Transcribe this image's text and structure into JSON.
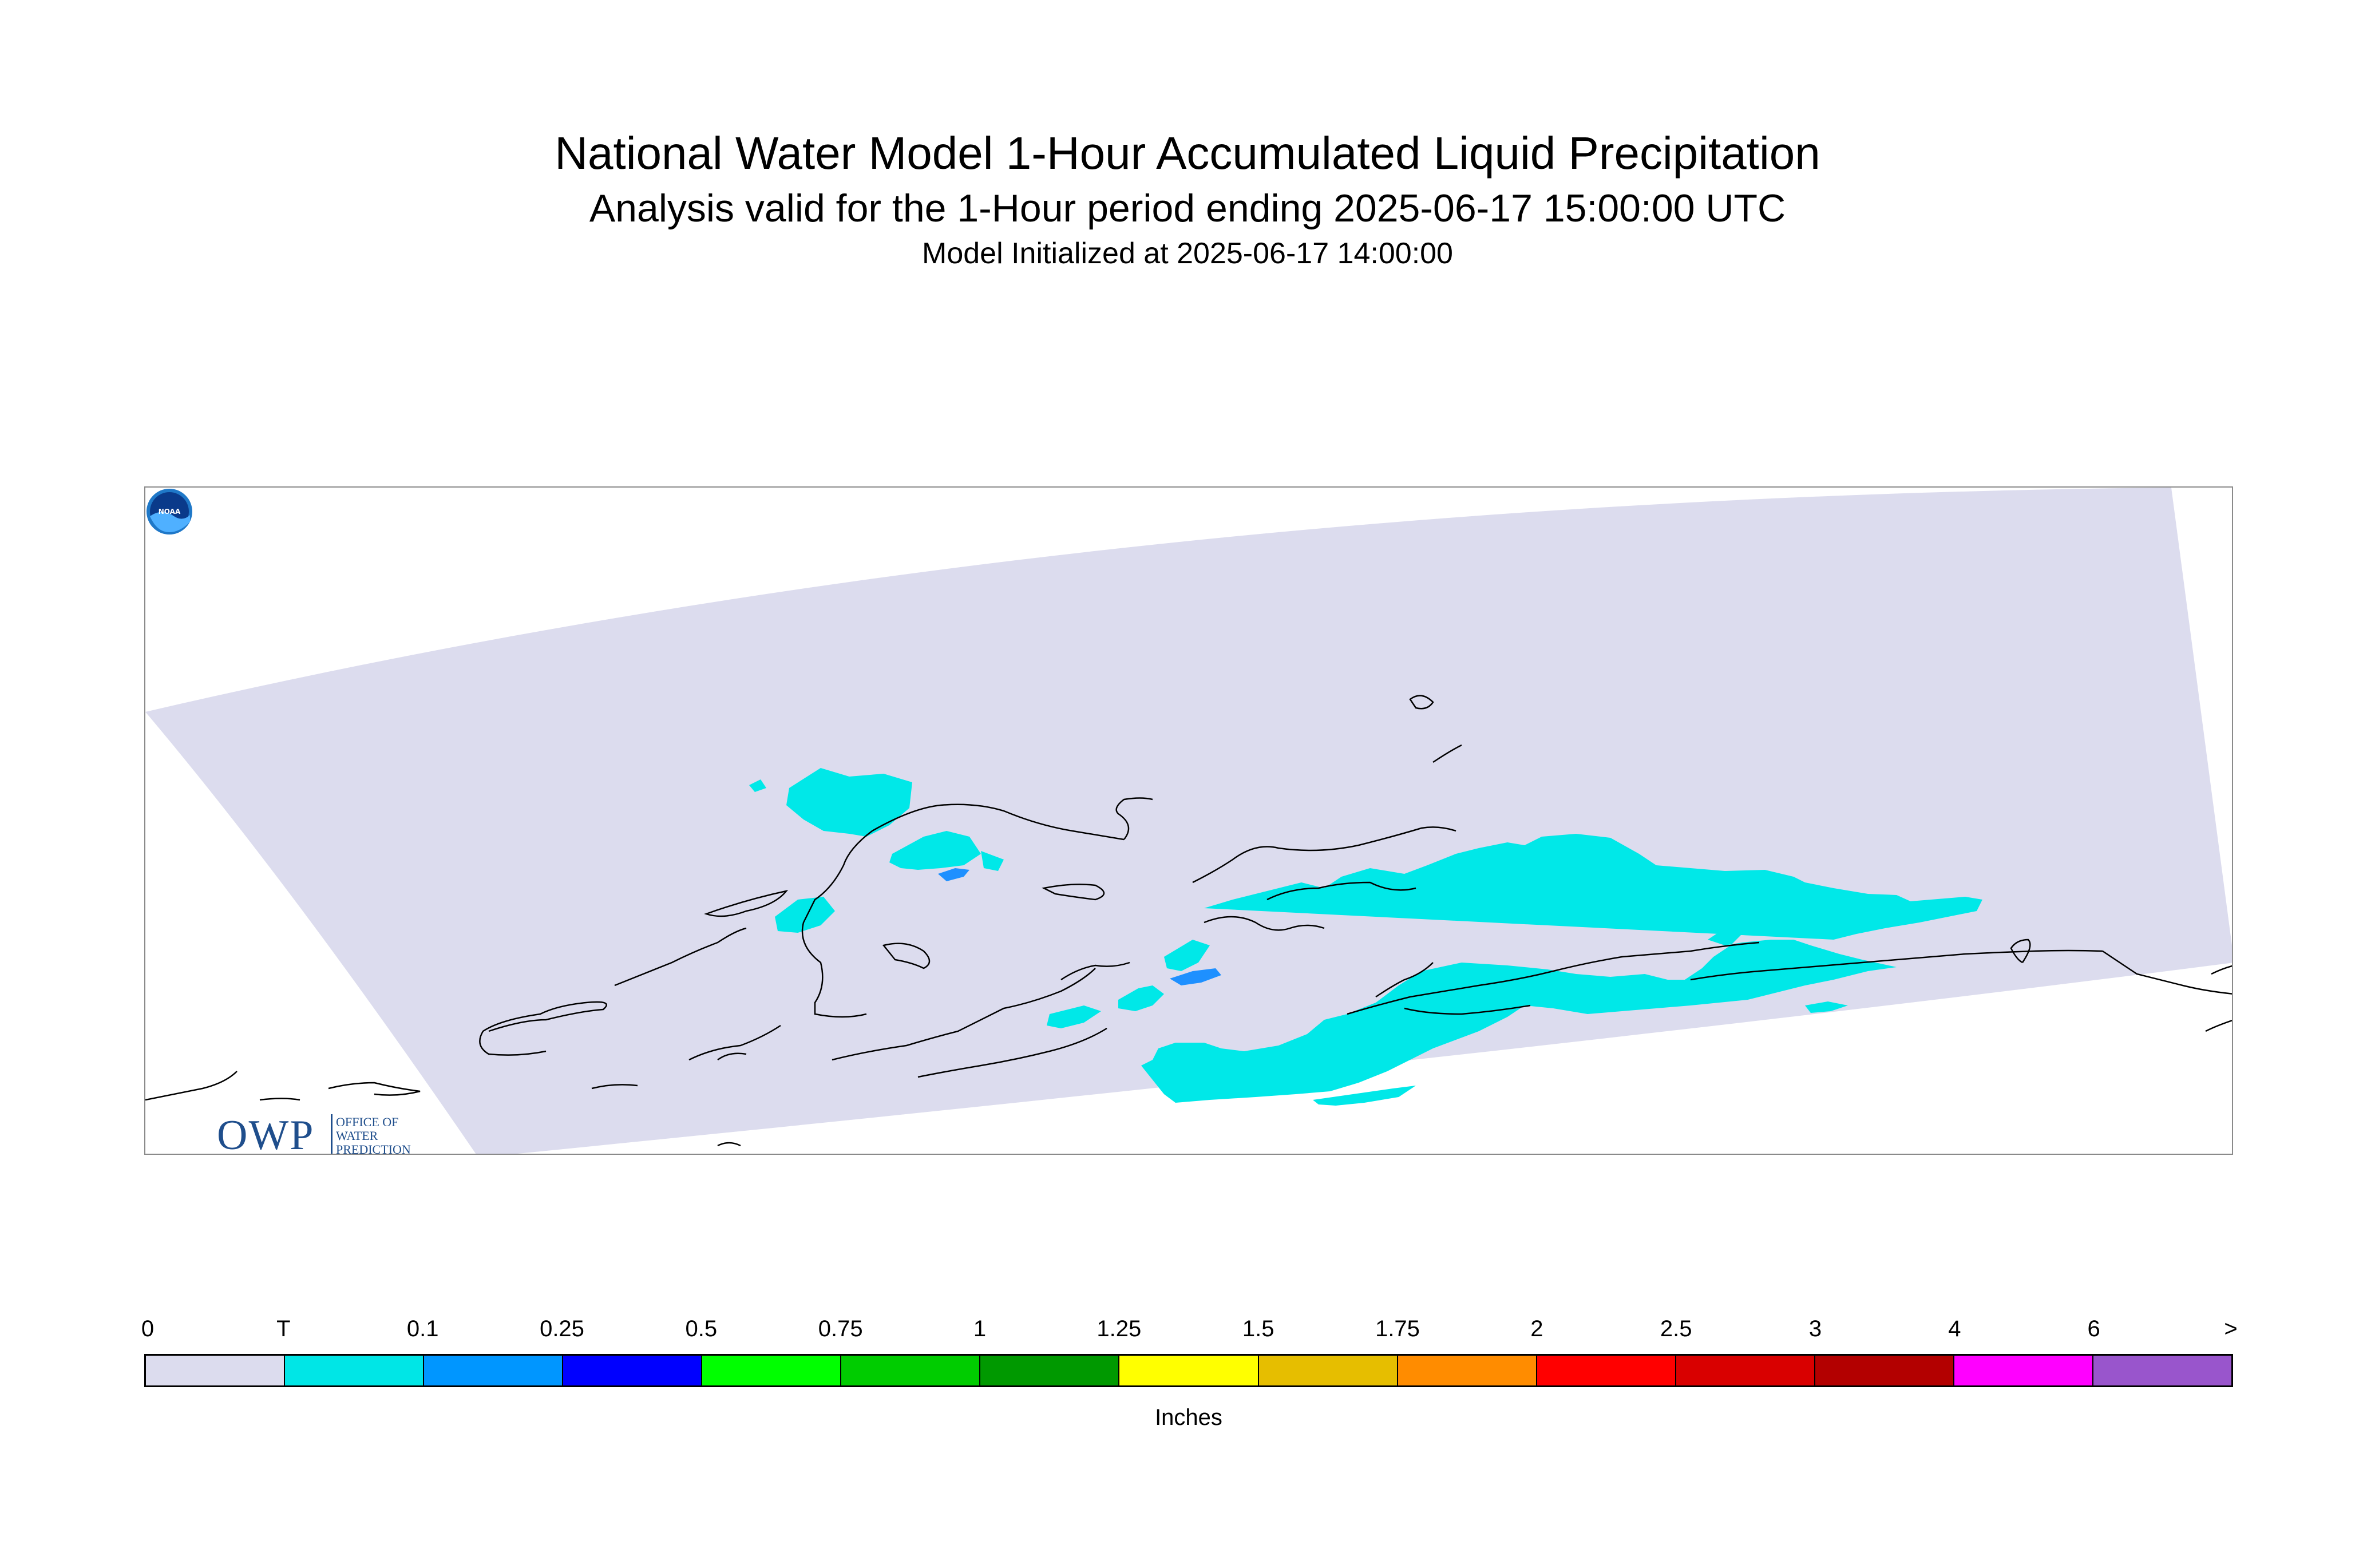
{
  "title": {
    "main": "National Water Model 1-Hour Accumulated Liquid Precipitation",
    "subtitle": "Analysis valid for the 1-Hour period ending 2025-06-17 15:00:00 UTC",
    "init": "Model Initialized at 2025-06-17 14:00:00"
  },
  "map": {
    "domain_color": "#dcdcee",
    "precip_colors": {
      "trace": "#00e8e8",
      "light": "#1e90ff"
    },
    "coastline_color": "#000000"
  },
  "logos": {
    "owp_text": "OWP",
    "owp_line1": "OFFICE OF",
    "owp_line2": "WATER",
    "owp_line3": "PREDICTION",
    "noaa_text": "NOAA"
  },
  "legend": {
    "labels": [
      "0",
      "T",
      "0.1",
      "0.25",
      "0.5",
      "0.75",
      "1",
      "1.25",
      "1.5",
      "1.75",
      "2",
      "2.5",
      "3",
      "4",
      "6",
      ">"
    ],
    "colors": [
      "#dcdcee",
      "#00e6e6",
      "#0096ff",
      "#0000ff",
      "#00ff00",
      "#00cc00",
      "#009900",
      "#ffff00",
      "#e6be00",
      "#ff8c00",
      "#ff0000",
      "#d90000",
      "#b30000",
      "#ff00ff",
      "#9955cc"
    ],
    "unit": "Inches"
  }
}
